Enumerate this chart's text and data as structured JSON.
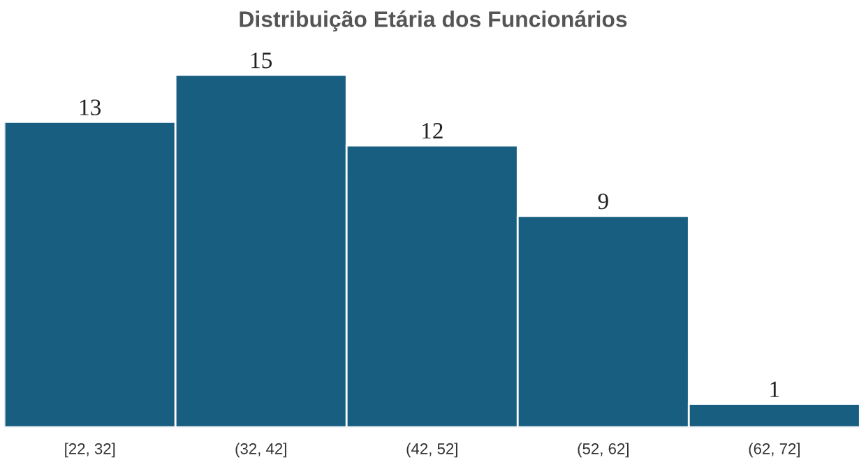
{
  "chart_data": {
    "type": "bar",
    "title": "Distribuição Etária dos Funcionários",
    "categories": [
      "[22, 32]",
      "(32, 42]",
      "(42, 52]",
      "(52, 62]",
      "(62, 72]"
    ],
    "values": [
      13,
      15,
      12,
      9,
      1
    ],
    "color": "#175e81",
    "data_labels": true,
    "grid": false,
    "legend": false,
    "tick_labels": "x"
  }
}
